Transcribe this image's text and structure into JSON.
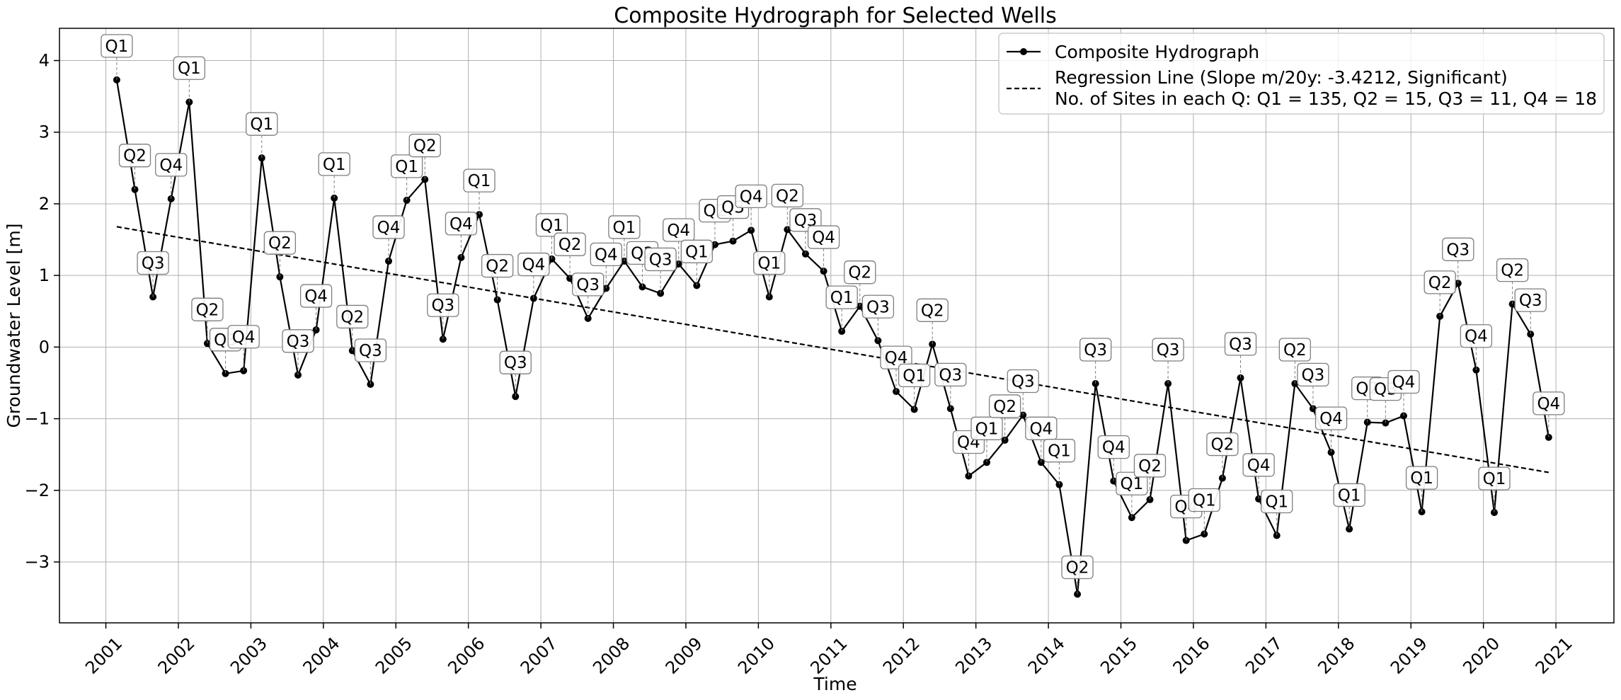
{
  "chart_data": {
    "type": "line",
    "title": "Composite Hydrograph for Selected Wells",
    "xlabel": "Time",
    "ylabel": "Groundwater Level [m]",
    "xlim": [
      2000.36,
      2021.8
    ],
    "ylim": [
      -3.85,
      4.45
    ],
    "x_ticks": [
      2001,
      2002,
      2003,
      2004,
      2005,
      2006,
      2007,
      2008,
      2009,
      2010,
      2011,
      2012,
      2013,
      2014,
      2015,
      2016,
      2017,
      2018,
      2019,
      2020,
      2021
    ],
    "x_tick_labels": [
      "2001",
      "2002",
      "2003",
      "2004",
      "2005",
      "2006",
      "2007",
      "2008",
      "2009",
      "2010",
      "2011",
      "2012",
      "2013",
      "2014",
      "2015",
      "2016",
      "2017",
      "2018",
      "2019",
      "2020",
      "2021"
    ],
    "x_tick_rotation_deg": 45,
    "y_ticks": [
      -3,
      -2,
      -1,
      0,
      1,
      2,
      3,
      4
    ],
    "y_tick_labels": [
      "−3",
      "−2",
      "−1",
      "0",
      "1",
      "2",
      "3",
      "4"
    ],
    "grid": true,
    "legend_position": "top-right",
    "legend": [
      {
        "label": "Composite Hydrograph",
        "style": "solid-marker"
      },
      {
        "label": "Regression Line (Slope m/20y: -3.4212, Significant)",
        "label2": "No. of Sites in each Q: Q1 = 135, Q2 = 15, Q3 = 11, Q4 = 18",
        "style": "dashed"
      }
    ],
    "colors": {
      "series": "#000000",
      "grid": "#b0b0b0",
      "regression": "#000000",
      "guide": "#808080"
    },
    "series": [
      {
        "name": "Composite Hydrograph",
        "points": [
          {
            "x": 2001.15,
            "y": 3.73,
            "q": "Q1"
          },
          {
            "x": 2001.4,
            "y": 2.2,
            "q": "Q2"
          },
          {
            "x": 2001.65,
            "y": 0.7,
            "q": "Q3"
          },
          {
            "x": 2001.9,
            "y": 2.07,
            "q": "Q4"
          },
          {
            "x": 2002.15,
            "y": 3.42,
            "q": "Q1"
          },
          {
            "x": 2002.4,
            "y": 0.05,
            "q": "Q2"
          },
          {
            "x": 2002.65,
            "y": -0.37,
            "q": "Q3"
          },
          {
            "x": 2002.9,
            "y": -0.33,
            "q": "Q4"
          },
          {
            "x": 2003.15,
            "y": 2.64,
            "q": "Q1"
          },
          {
            "x": 2003.4,
            "y": 0.98,
            "q": "Q2"
          },
          {
            "x": 2003.65,
            "y": -0.39,
            "q": "Q3"
          },
          {
            "x": 2003.9,
            "y": 0.24,
            "q": "Q4"
          },
          {
            "x": 2004.15,
            "y": 2.08,
            "q": "Q1"
          },
          {
            "x": 2004.4,
            "y": -0.05,
            "q": "Q2"
          },
          {
            "x": 2004.65,
            "y": -0.52,
            "q": "Q3"
          },
          {
            "x": 2004.9,
            "y": 1.2,
            "q": "Q4"
          },
          {
            "x": 2005.15,
            "y": 2.05,
            "q": "Q1"
          },
          {
            "x": 2005.4,
            "y": 2.34,
            "q": "Q2"
          },
          {
            "x": 2005.65,
            "y": 0.11,
            "q": "Q3"
          },
          {
            "x": 2005.9,
            "y": 1.25,
            "q": "Q4"
          },
          {
            "x": 2006.15,
            "y": 1.85,
            "q": "Q1"
          },
          {
            "x": 2006.4,
            "y": 0.66,
            "q": "Q2"
          },
          {
            "x": 2006.65,
            "y": -0.69,
            "q": "Q3"
          },
          {
            "x": 2006.9,
            "y": 0.68,
            "q": "Q4"
          },
          {
            "x": 2007.15,
            "y": 1.23,
            "q": "Q1"
          },
          {
            "x": 2007.4,
            "y": 0.96,
            "q": "Q2"
          },
          {
            "x": 2007.65,
            "y": 0.4,
            "q": "Q3"
          },
          {
            "x": 2007.9,
            "y": 0.82,
            "q": "Q4"
          },
          {
            "x": 2008.15,
            "y": 1.2,
            "q": "Q1"
          },
          {
            "x": 2008.4,
            "y": 0.84,
            "q": "Q2"
          },
          {
            "x": 2008.65,
            "y": 0.75,
            "q": "Q3"
          },
          {
            "x": 2008.9,
            "y": 1.16,
            "q": "Q4"
          },
          {
            "x": 2009.15,
            "y": 0.86,
            "q": "Q1"
          },
          {
            "x": 2009.4,
            "y": 1.43,
            "q": "Q2"
          },
          {
            "x": 2009.65,
            "y": 1.48,
            "q": "Q3"
          },
          {
            "x": 2009.9,
            "y": 1.63,
            "q": "Q4"
          },
          {
            "x": 2010.15,
            "y": 0.7,
            "q": "Q1"
          },
          {
            "x": 2010.4,
            "y": 1.64,
            "q": "Q2"
          },
          {
            "x": 2010.65,
            "y": 1.3,
            "q": "Q3"
          },
          {
            "x": 2010.9,
            "y": 1.06,
            "q": "Q4"
          },
          {
            "x": 2011.15,
            "y": 0.22,
            "q": "Q1"
          },
          {
            "x": 2011.4,
            "y": 0.57,
            "q": "Q2"
          },
          {
            "x": 2011.65,
            "y": 0.09,
            "q": "Q3"
          },
          {
            "x": 2011.9,
            "y": -0.62,
            "q": "Q4"
          },
          {
            "x": 2012.15,
            "y": -0.87,
            "q": "Q1"
          },
          {
            "x": 2012.4,
            "y": 0.04,
            "q": "Q2"
          },
          {
            "x": 2012.65,
            "y": -0.86,
            "q": "Q3"
          },
          {
            "x": 2012.9,
            "y": -1.8,
            "q": "Q4"
          },
          {
            "x": 2013.15,
            "y": -1.61,
            "q": "Q1"
          },
          {
            "x": 2013.4,
            "y": -1.3,
            "q": "Q2"
          },
          {
            "x": 2013.65,
            "y": -0.95,
            "q": "Q3"
          },
          {
            "x": 2013.9,
            "y": -1.61,
            "q": "Q4"
          },
          {
            "x": 2014.15,
            "y": -1.92,
            "q": "Q1"
          },
          {
            "x": 2014.4,
            "y": -3.45,
            "q": "Q2"
          },
          {
            "x": 2014.65,
            "y": -0.51,
            "q": "Q3"
          },
          {
            "x": 2014.9,
            "y": -1.87,
            "q": "Q4"
          },
          {
            "x": 2015.15,
            "y": -2.38,
            "q": "Q1"
          },
          {
            "x": 2015.4,
            "y": -2.13,
            "q": "Q2"
          },
          {
            "x": 2015.65,
            "y": -0.51,
            "q": "Q3"
          },
          {
            "x": 2015.9,
            "y": -2.7,
            "q": "Q4"
          },
          {
            "x": 2016.15,
            "y": -2.61,
            "q": "Q1"
          },
          {
            "x": 2016.4,
            "y": -1.83,
            "q": "Q2"
          },
          {
            "x": 2016.65,
            "y": -0.43,
            "q": "Q3"
          },
          {
            "x": 2016.9,
            "y": -2.12,
            "q": "Q4"
          },
          {
            "x": 2017.15,
            "y": -2.63,
            "q": "Q1"
          },
          {
            "x": 2017.4,
            "y": -0.51,
            "q": "Q2"
          },
          {
            "x": 2017.65,
            "y": -0.86,
            "q": "Q3"
          },
          {
            "x": 2017.9,
            "y": -1.47,
            "q": "Q4"
          },
          {
            "x": 2018.15,
            "y": -2.54,
            "q": "Q1"
          },
          {
            "x": 2018.4,
            "y": -1.05,
            "q": "Q2"
          },
          {
            "x": 2018.65,
            "y": -1.06,
            "q": "Q3"
          },
          {
            "x": 2018.9,
            "y": -0.96,
            "q": "Q4"
          },
          {
            "x": 2019.15,
            "y": -2.3,
            "q": "Q1"
          },
          {
            "x": 2019.4,
            "y": 0.43,
            "q": "Q2"
          },
          {
            "x": 2019.65,
            "y": 0.89,
            "q": "Q3"
          },
          {
            "x": 2019.9,
            "y": -0.32,
            "q": "Q4"
          },
          {
            "x": 2020.15,
            "y": -2.31,
            "q": "Q1"
          },
          {
            "x": 2020.4,
            "y": 0.6,
            "q": "Q2"
          },
          {
            "x": 2020.65,
            "y": 0.18,
            "q": "Q3"
          },
          {
            "x": 2020.9,
            "y": -1.26,
            "q": "Q4"
          }
        ]
      }
    ],
    "regression": {
      "x0": 2001.15,
      "y0": 1.68,
      "x1": 2020.9,
      "y1": -1.75
    }
  }
}
